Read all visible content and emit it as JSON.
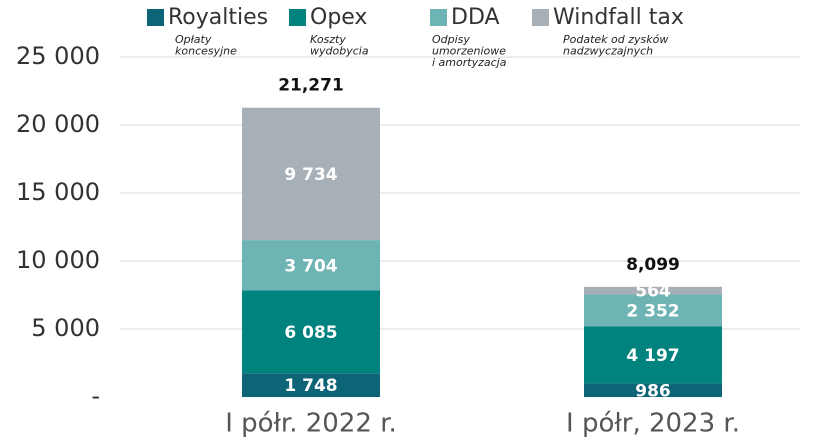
{
  "chart_data": {
    "type": "stacked_bar",
    "categories": [
      "I półr. 2022 r.",
      "I półr, 2023 r."
    ],
    "series": [
      {
        "name": "Royalties",
        "description": [
          "Opłaty",
          "koncesyjne"
        ],
        "color": "#0d6477",
        "values": [
          1748,
          986
        ],
        "value_labels": [
          "1 748",
          "986"
        ]
      },
      {
        "name": "Opex",
        "description": [
          "Koszty",
          "wydobycia"
        ],
        "color": "#00827f",
        "values": [
          6085,
          4197
        ],
        "value_labels": [
          "6 085",
          "4 197"
        ]
      },
      {
        "name": "DDA",
        "description": [
          "Odpisy",
          "umorzeniowe",
          "i amortyzacja"
        ],
        "color": "#6fb4b4",
        "values": [
          3704,
          2352
        ],
        "value_labels": [
          "3 704",
          "2 352"
        ]
      },
      {
        "name": "Windfall tax",
        "description": [
          "Podatek od zysków",
          "nadzwyczajnych"
        ],
        "color": "#a8b0b7",
        "values": [
          9734,
          564
        ],
        "value_labels": [
          "9 734",
          "564"
        ]
      }
    ],
    "totals": [
      21271,
      8099
    ],
    "total_labels": [
      "21,271",
      "8,099"
    ],
    "ylim": [
      0,
      25000
    ],
    "yticks": [
      {
        "value": 0,
        "label": "-"
      },
      {
        "value": 5000,
        "label": "5 000"
      },
      {
        "value": 10000,
        "label": "10 000"
      },
      {
        "value": 15000,
        "label": "15 000"
      },
      {
        "value": 20000,
        "label": "20 000"
      },
      {
        "value": 25000,
        "label": "25 000"
      }
    ],
    "grid": true,
    "legend": "top"
  }
}
